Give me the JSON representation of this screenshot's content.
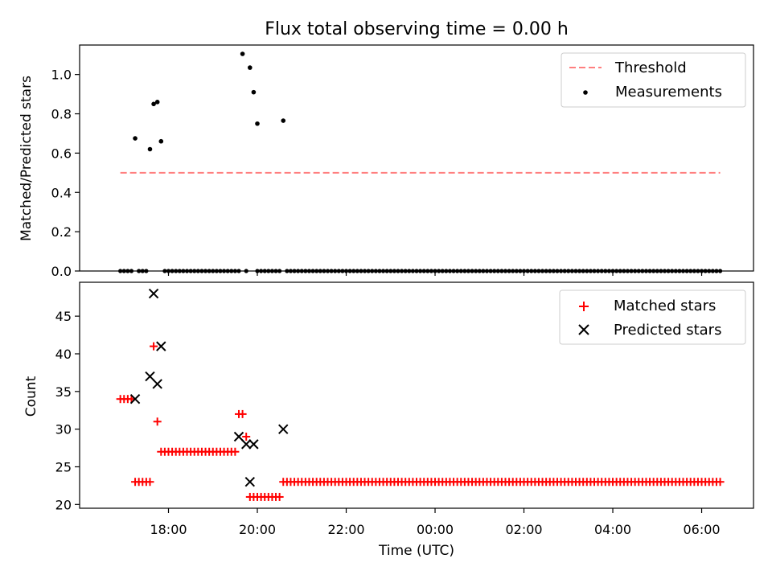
{
  "chart_data": [
    {
      "type": "scatter",
      "title": "Flux total observing time = 0.00 h",
      "xlabel": "",
      "ylabel": "Matched/Predicted stars",
      "ylim": [
        0,
        1.15
      ],
      "xlim": [
        "16:00",
        "07:10"
      ],
      "yticks": [
        "0.0",
        "0.2",
        "0.4",
        "0.6",
        "0.8",
        "1.0"
      ],
      "legend_position": "top-right",
      "threshold": {
        "name": "Threshold",
        "value": 0.5,
        "x_start": "16:55",
        "x_end": "06:25",
        "color": "#ff7f7f",
        "style": "dashed"
      },
      "series": [
        {
          "name": "Measurements",
          "color": "#000000",
          "points": [
            {
              "x": "17:15",
              "y": 0.675
            },
            {
              "x": "17:35",
              "y": 0.62
            },
            {
              "x": "17:40",
              "y": 0.85
            },
            {
              "x": "17:45",
              "y": 0.86
            },
            {
              "x": "17:50",
              "y": 0.66
            },
            {
              "x": "19:40",
              "y": 1.105
            },
            {
              "x": "19:50",
              "y": 1.035
            },
            {
              "x": "19:55",
              "y": 0.91
            },
            {
              "x": "20:00",
              "y": 0.75
            },
            {
              "x": "20:35",
              "y": 0.765
            }
          ],
          "zero_runs": [
            {
              "from": "16:55",
              "to": "17:10"
            },
            {
              "from": "17:20",
              "to": "17:30"
            },
            {
              "from": "17:55",
              "to": "19:35"
            },
            {
              "from": "19:45",
              "to": "19:45"
            },
            {
              "from": "20:00",
              "to": "20:30"
            },
            {
              "from": "20:40",
              "to": "06:25"
            }
          ]
        }
      ]
    },
    {
      "type": "scatter",
      "title": "",
      "xlabel": "Time (UTC)",
      "ylabel": "Count",
      "ylim": [
        19.5,
        49.5
      ],
      "xlim": [
        "16:00",
        "07:10"
      ],
      "yticks": [
        "20",
        "25",
        "30",
        "35",
        "40",
        "45"
      ],
      "xticks": [
        "18:00",
        "20:00",
        "22:00",
        "00:00",
        "02:00",
        "04:00",
        "06:00"
      ],
      "legend_position": "top-right",
      "series": [
        {
          "name": "Matched stars",
          "marker": "plus",
          "color": "#ff0000",
          "points": [
            {
              "x": "17:40",
              "y": 41
            },
            {
              "x": "17:45",
              "y": 31
            },
            {
              "x": "19:35",
              "y": 32
            },
            {
              "x": "19:40",
              "y": 32
            },
            {
              "x": "19:45",
              "y": 29
            }
          ],
          "runs": [
            {
              "from": "16:55",
              "to": "17:10",
              "y": 34
            },
            {
              "from": "17:15",
              "to": "17:35",
              "y": 23
            },
            {
              "from": "17:50",
              "to": "19:30",
              "y": 27
            },
            {
              "from": "19:50",
              "to": "20:30",
              "y": 21
            },
            {
              "from": "20:35",
              "to": "06:25",
              "y": 23
            }
          ]
        },
        {
          "name": "Predicted stars",
          "marker": "x",
          "color": "#000000",
          "points": [
            {
              "x": "17:15",
              "y": 34
            },
            {
              "x": "17:35",
              "y": 37
            },
            {
              "x": "17:40",
              "y": 48
            },
            {
              "x": "17:45",
              "y": 36
            },
            {
              "x": "17:50",
              "y": 41
            },
            {
              "x": "19:35",
              "y": 29
            },
            {
              "x": "19:45",
              "y": 28
            },
            {
              "x": "19:50",
              "y": 23
            },
            {
              "x": "19:55",
              "y": 28
            },
            {
              "x": "20:35",
              "y": 30
            }
          ]
        }
      ]
    }
  ]
}
